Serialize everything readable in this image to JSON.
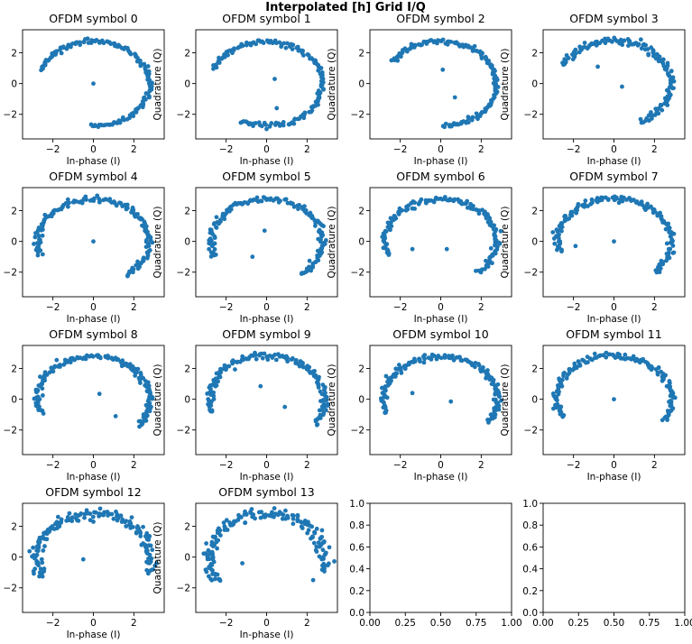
{
  "figure": {
    "title": "Interpolated [h] Grid I/Q",
    "title_color": "#008000"
  },
  "series_color": "#1f77b4",
  "chart_data": [
    {
      "type": "scatter",
      "title": "OFDM symbol 0",
      "xlabel": "In-phase (I)",
      "ylabel": "",
      "xlim": [
        -3.5,
        3.5
      ],
      "ylim": [
        -3.6,
        3.5
      ],
      "xticks": [
        -2,
        0,
        2
      ],
      "yticks": [
        -2,
        0,
        2
      ],
      "arc": {
        "r": 2.75,
        "start": -93,
        "end": 162,
        "jitter": 0.07,
        "n": 150
      },
      "points": [
        [
          0,
          0
        ]
      ]
    },
    {
      "type": "scatter",
      "title": "OFDM symbol 1",
      "xlabel": "In-phase (I)",
      "ylabel": "Quadrature (Q)",
      "xlim": [
        -3.5,
        3.5
      ],
      "ylim": [
        -3.6,
        3.5
      ],
      "xticks": [
        -2,
        0,
        2
      ],
      "yticks": [
        -2,
        0,
        2
      ],
      "arc": {
        "r": 2.75,
        "start": -118,
        "end": 160,
        "jitter": 0.07,
        "n": 150
      },
      "points": [
        [
          0.4,
          0.3
        ],
        [
          0.5,
          -1.6
        ]
      ]
    },
    {
      "type": "scatter",
      "title": "OFDM symbol 2",
      "xlabel": "In-phase (I)",
      "ylabel": "Quadrature (Q)",
      "xlim": [
        -3.5,
        3.5
      ],
      "ylim": [
        -3.6,
        3.5
      ],
      "xticks": [
        -2,
        0,
        2
      ],
      "yticks": [
        -2,
        0,
        2
      ],
      "arc": {
        "r": 2.75,
        "start": -88,
        "end": 150,
        "jitter": 0.07,
        "n": 150
      },
      "points": [
        [
          0.1,
          0.9
        ],
        [
          0.7,
          -0.9
        ]
      ]
    },
    {
      "type": "scatter",
      "title": "OFDM symbol 3",
      "xlabel": "In-phase (I)",
      "ylabel": "Quadrature (Q)",
      "xlim": [
        -3.5,
        3.5
      ],
      "ylim": [
        -3.6,
        3.5
      ],
      "xticks": [
        -2,
        0,
        2
      ],
      "yticks": [
        -2,
        0,
        2
      ],
      "arc": {
        "r": 2.8,
        "start": -62,
        "end": 155,
        "jitter": 0.09,
        "n": 150
      },
      "points": [
        [
          -0.8,
          1.1
        ],
        [
          0.4,
          -0.2
        ]
      ]
    },
    {
      "type": "scatter",
      "title": "OFDM symbol 4",
      "xlabel": "In-phase (I)",
      "ylabel": "",
      "xlim": [
        -3.5,
        3.5
      ],
      "ylim": [
        -3.6,
        3.5
      ],
      "xticks": [
        -2,
        0,
        2
      ],
      "yticks": [
        -2,
        0,
        2
      ],
      "arc": {
        "r": 2.75,
        "start": -55,
        "end": 200,
        "jitter": 0.08,
        "n": 150
      },
      "points": [
        [
          0,
          0
        ]
      ]
    },
    {
      "type": "scatter",
      "title": "OFDM symbol 5",
      "xlabel": "In-phase (I)",
      "ylabel": "Quadrature (Q)",
      "xlim": [
        -3.5,
        3.5
      ],
      "ylim": [
        -3.6,
        3.5
      ],
      "xticks": [
        -2,
        0,
        2
      ],
      "yticks": [
        -2,
        0,
        2
      ],
      "arc": {
        "r": 2.75,
        "start": -52,
        "end": 203,
        "jitter": 0.08,
        "n": 150
      },
      "points": [
        [
          -0.1,
          0.7
        ],
        [
          -0.7,
          -1.0
        ]
      ]
    },
    {
      "type": "scatter",
      "title": "OFDM symbol 6",
      "xlabel": "In-phase (I)",
      "ylabel": "Quadrature (Q)",
      "xlim": [
        -3.5,
        3.5
      ],
      "ylim": [
        -3.6,
        3.5
      ],
      "xticks": [
        -2,
        0,
        2
      ],
      "yticks": [
        -2,
        0,
        2
      ],
      "arc": {
        "r": 2.75,
        "start": -48,
        "end": 200,
        "jitter": 0.08,
        "n": 150
      },
      "points": [
        [
          -1.4,
          -0.5
        ],
        [
          0.3,
          -0.5
        ]
      ]
    },
    {
      "type": "scatter",
      "title": "OFDM symbol 7",
      "xlabel": "In-phase (I)",
      "ylabel": "Quadrature (Q)",
      "xlim": [
        -3.5,
        3.5
      ],
      "ylim": [
        -3.6,
        3.5
      ],
      "xticks": [
        -2,
        0,
        2
      ],
      "yticks": [
        -2,
        0,
        2
      ],
      "arc": {
        "r": 2.8,
        "start": -45,
        "end": 195,
        "jitter": 0.09,
        "n": 150
      },
      "points": [
        [
          -1.9,
          -0.3
        ],
        [
          0,
          0
        ]
      ]
    },
    {
      "type": "scatter",
      "title": "OFDM symbol 8",
      "xlabel": "In-phase (I)",
      "ylabel": "",
      "xlim": [
        -3.5,
        3.5
      ],
      "ylim": [
        -3.6,
        3.5
      ],
      "xticks": [
        -2,
        0,
        2
      ],
      "yticks": [
        -2,
        0,
        2
      ],
      "arc": {
        "r": 2.8,
        "start": -38,
        "end": 200,
        "jitter": 0.09,
        "n": 150
      },
      "points": [
        [
          0.3,
          0.35
        ],
        [
          1.1,
          -1.1
        ]
      ]
    },
    {
      "type": "scatter",
      "title": "OFDM symbol 9",
      "xlabel": "In-phase (I)",
      "ylabel": "Quadrature (Q)",
      "xlim": [
        -3.5,
        3.5
      ],
      "ylim": [
        -3.6,
        3.5
      ],
      "xticks": [
        -2,
        0,
        2
      ],
      "yticks": [
        -2,
        0,
        2
      ],
      "arc": {
        "r": 2.85,
        "start": -35,
        "end": 198,
        "jitter": 0.09,
        "n": 150
      },
      "points": [
        [
          -0.3,
          0.85
        ],
        [
          0.9,
          -0.5
        ]
      ]
    },
    {
      "type": "scatter",
      "title": "OFDM symbol 10",
      "xlabel": "In-phase (I)",
      "ylabel": "Quadrature (Q)",
      "xlim": [
        -3.5,
        3.5
      ],
      "ylim": [
        -3.6,
        3.5
      ],
      "xticks": [
        -2,
        0,
        2
      ],
      "yticks": [
        -2,
        0,
        2
      ],
      "arc": {
        "r": 2.8,
        "start": -32,
        "end": 200,
        "jitter": 0.09,
        "n": 150
      },
      "points": [
        [
          -1.4,
          0.4
        ],
        [
          0.5,
          -0.15
        ]
      ]
    },
    {
      "type": "scatter",
      "title": "OFDM symbol 11",
      "xlabel": "In-phase (I)",
      "ylabel": "Quadrature (Q)",
      "xlim": [
        -3.5,
        3.5
      ],
      "ylim": [
        -3.6,
        3.5
      ],
      "xticks": [
        -2,
        0,
        2
      ],
      "yticks": [
        -2,
        0,
        2
      ],
      "arc": {
        "r": 2.85,
        "start": -30,
        "end": 205,
        "jitter": 0.09,
        "n": 150
      },
      "points": [
        [
          0,
          0
        ]
      ]
    },
    {
      "type": "scatter",
      "title": "OFDM symbol 12",
      "xlabel": "In-phase (I)",
      "ylabel": "",
      "xlim": [
        -3.5,
        3.5
      ],
      "ylim": [
        -3.6,
        3.5
      ],
      "xticks": [
        -2,
        0,
        2
      ],
      "yticks": [
        -2,
        0,
        2
      ],
      "arc": {
        "r": 2.8,
        "start": -20,
        "end": 208,
        "jitter": 0.14,
        "n": 160
      },
      "points": [
        [
          0,
          2.3
        ],
        [
          -0.5,
          -0.15
        ]
      ]
    },
    {
      "type": "scatter",
      "title": "OFDM symbol 13",
      "xlabel": "In-phase (I)",
      "ylabel": "Quadrature (Q)",
      "xlim": [
        -3.5,
        3.5
      ],
      "ylim": [
        -3.6,
        3.5
      ],
      "xticks": [
        -2,
        0,
        2
      ],
      "yticks": [
        -2,
        0,
        2
      ],
      "arc": {
        "r": 2.85,
        "start": -18,
        "end": 215,
        "jitter": 0.16,
        "n": 170
      },
      "points": [
        [
          -1.2,
          -0.4
        ],
        [
          2.3,
          -1.5
        ]
      ]
    },
    {
      "type": "scatter",
      "title": "",
      "xlabel": "",
      "ylabel": "",
      "xlim": [
        0,
        1
      ],
      "ylim": [
        0,
        1
      ],
      "xticks": [
        0,
        0.25,
        0.5,
        0.75,
        1
      ],
      "yticks": [
        0,
        0.2,
        0.4,
        0.6,
        0.8,
        1
      ],
      "xtick_labels": [
        "0.00",
        "0.25",
        "0.50",
        "0.75",
        "1.00"
      ],
      "ytick_labels": [
        "0.0",
        "0.2",
        "0.4",
        "0.6",
        "0.8",
        "1.0"
      ],
      "points": []
    },
    {
      "type": "scatter",
      "title": "",
      "xlabel": "",
      "ylabel": "",
      "xlim": [
        0,
        1
      ],
      "ylim": [
        0,
        1
      ],
      "xticks": [
        0,
        0.25,
        0.5,
        0.75,
        1
      ],
      "yticks": [
        0,
        0.2,
        0.4,
        0.6,
        0.8,
        1
      ],
      "xtick_labels": [
        "0.00",
        "0.25",
        "0.50",
        "0.75",
        "1.00"
      ],
      "ytick_labels": [
        "0.0",
        "0.2",
        "0.4",
        "0.6",
        "0.8",
        "1.0"
      ],
      "points": []
    }
  ]
}
